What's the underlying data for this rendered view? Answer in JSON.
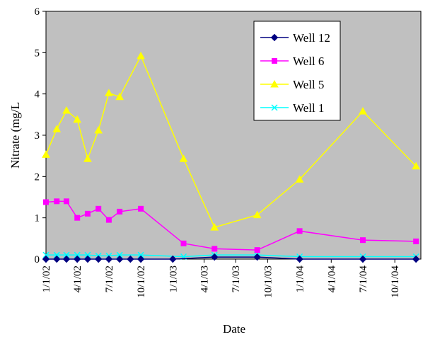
{
  "chart_data": {
    "type": "line",
    "title": "",
    "xlabel": "Date",
    "ylabel": "Nitrate (mg/L",
    "ylim": [
      0,
      6
    ],
    "y_ticks": [
      0,
      1,
      2,
      3,
      4,
      5,
      6
    ],
    "x_ticks": [
      "1/1/02",
      "4/1/02",
      "7/1/02",
      "10/1/02",
      "1/1/03",
      "4/1/03",
      "7/1/03",
      "10/1/03",
      "1/1/04",
      "4/1/04",
      "7/1/04",
      "10/1/04"
    ],
    "xlim": [
      "2002-01-01",
      "2004-12-15"
    ],
    "plot_background": "#c0c0c0",
    "grid": false,
    "legend_position": "top-right",
    "series": [
      {
        "name": "Well 12",
        "color": "#000080",
        "marker": "diamond",
        "points": [
          [
            "2002-01-01",
            0.0
          ],
          [
            "2002-02-01",
            0.0
          ],
          [
            "2002-03-01",
            0.0
          ],
          [
            "2002-04-01",
            0.0
          ],
          [
            "2002-05-01",
            0.0
          ],
          [
            "2002-06-01",
            0.0
          ],
          [
            "2002-07-01",
            0.0
          ],
          [
            "2002-08-01",
            0.0
          ],
          [
            "2002-09-01",
            0.0
          ],
          [
            "2002-10-01",
            0.0
          ],
          [
            "2003-01-01",
            0.0
          ],
          [
            "2003-05-01",
            0.05
          ],
          [
            "2003-09-01",
            0.05
          ],
          [
            "2004-01-01",
            0.0
          ],
          [
            "2004-07-01",
            0.0
          ],
          [
            "2004-12-01",
            0.0
          ]
        ]
      },
      {
        "name": "Well 6",
        "color": "#ff00ff",
        "marker": "square",
        "points": [
          [
            "2002-01-01",
            1.38
          ],
          [
            "2002-02-01",
            1.4
          ],
          [
            "2002-03-01",
            1.4
          ],
          [
            "2002-04-01",
            1.0
          ],
          [
            "2002-05-01",
            1.1
          ],
          [
            "2002-06-01",
            1.22
          ],
          [
            "2002-07-01",
            0.95
          ],
          [
            "2002-08-01",
            1.15
          ],
          [
            "2002-10-01",
            1.22
          ],
          [
            "2003-02-01",
            0.38
          ],
          [
            "2003-05-01",
            0.25
          ],
          [
            "2003-09-01",
            0.22
          ],
          [
            "2004-01-01",
            0.68
          ],
          [
            "2004-07-01",
            0.46
          ],
          [
            "2004-12-01",
            0.43
          ]
        ]
      },
      {
        "name": "Well 5",
        "color": "#ffff00",
        "marker": "triangle",
        "points": [
          [
            "2002-01-01",
            2.53
          ],
          [
            "2002-02-01",
            3.15
          ],
          [
            "2002-03-01",
            3.6
          ],
          [
            "2002-04-01",
            3.38
          ],
          [
            "2002-05-01",
            2.43
          ],
          [
            "2002-06-01",
            3.12
          ],
          [
            "2002-07-01",
            4.02
          ],
          [
            "2002-08-01",
            3.93
          ],
          [
            "2002-10-01",
            4.92
          ],
          [
            "2003-02-01",
            2.43
          ],
          [
            "2003-05-01",
            0.77
          ],
          [
            "2003-09-01",
            1.07
          ],
          [
            "2004-01-01",
            1.93
          ],
          [
            "2004-07-01",
            3.58
          ],
          [
            "2004-12-01",
            2.25
          ]
        ]
      },
      {
        "name": "Well 1",
        "color": "#00ffff",
        "marker": "x",
        "points": [
          [
            "2002-01-01",
            0.1
          ],
          [
            "2002-02-01",
            0.1
          ],
          [
            "2002-03-01",
            0.1
          ],
          [
            "2002-04-01",
            0.1
          ],
          [
            "2002-05-01",
            0.1
          ],
          [
            "2002-06-01",
            0.08
          ],
          [
            "2002-07-01",
            0.08
          ],
          [
            "2002-08-01",
            0.1
          ],
          [
            "2002-10-01",
            0.1
          ],
          [
            "2003-02-01",
            0.06
          ],
          [
            "2003-05-01",
            0.1
          ],
          [
            "2003-09-01",
            0.1
          ],
          [
            "2004-01-01",
            0.06
          ],
          [
            "2004-07-01",
            0.06
          ],
          [
            "2004-12-01",
            0.06
          ]
        ]
      }
    ]
  }
}
